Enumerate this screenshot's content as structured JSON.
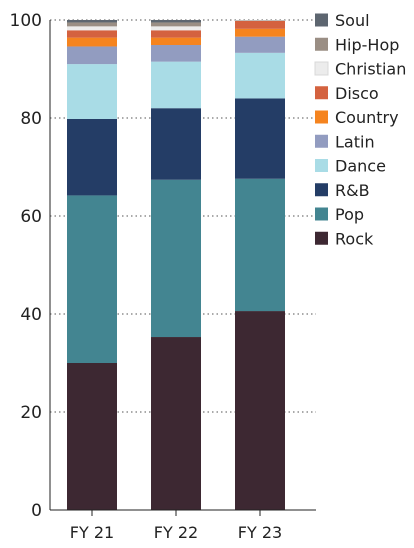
{
  "chart_data": {
    "type": "bar",
    "stacked": true,
    "categories": [
      "FY 21",
      "FY 22",
      "FY 23"
    ],
    "ylim": [
      0,
      100
    ],
    "yticks": [
      0,
      20,
      40,
      60,
      80,
      100
    ],
    "grid": "horizontal dotted",
    "legend_placement": "right",
    "series": [
      {
        "name": "Rock",
        "color": "#3d2832",
        "values": [
          30,
          35.3,
          40.6
        ]
      },
      {
        "name": "Pop",
        "color": "#438591",
        "values": [
          34.2,
          32.1,
          27
        ]
      },
      {
        "name": "R&B",
        "color": "#243d66",
        "values": [
          15.6,
          14.6,
          16.4
        ]
      },
      {
        "name": "Dance",
        "color": "#a9dce6",
        "values": [
          11.2,
          9.5,
          9.3
        ]
      },
      {
        "name": "Latin",
        "color": "#929cc0",
        "values": [
          3.6,
          3.4,
          3.3
        ]
      },
      {
        "name": "Country",
        "color": "#f5841f",
        "values": [
          1.8,
          1.5,
          1.6
        ]
      },
      {
        "name": "Disco",
        "color": "#d4623f",
        "values": [
          1.5,
          1.5,
          1.6
        ]
      },
      {
        "name": "Christian",
        "color": "#ececec",
        "values": [
          0.8,
          0.8,
          0.1
        ]
      },
      {
        "name": "Hip-Hop",
        "color": "#9a8e84",
        "values": [
          0.8,
          0.8,
          0.1
        ]
      },
      {
        "name": "Soul",
        "color": "#5d6670",
        "values": [
          0.5,
          0.5,
          0
        ]
      }
    ],
    "legend_order": [
      "Soul",
      "Hip-Hop",
      "Christian",
      "Disco",
      "Country",
      "Latin",
      "Dance",
      "R&B",
      "Pop",
      "Rock"
    ]
  }
}
